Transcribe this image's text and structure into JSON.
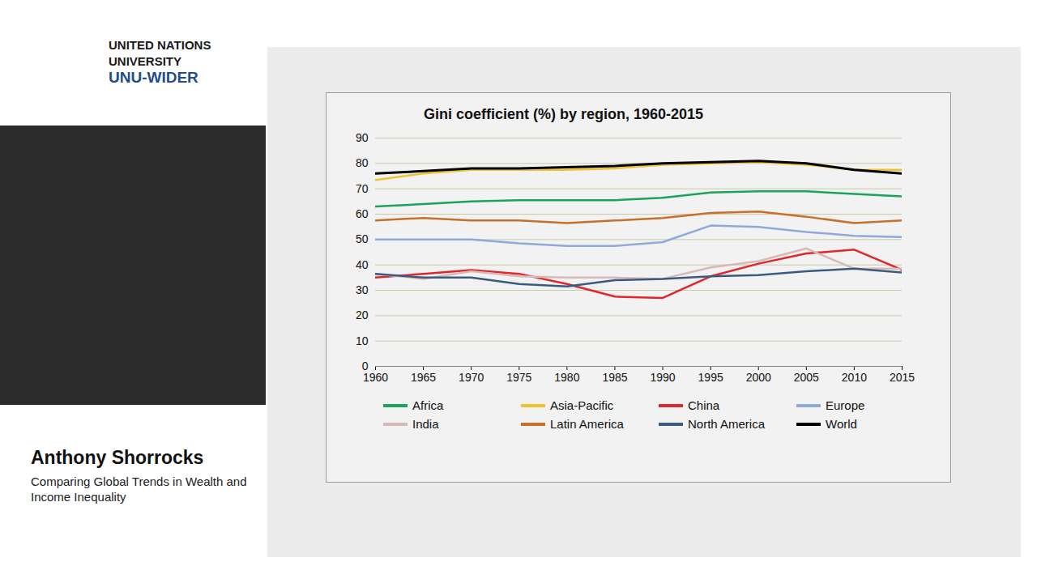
{
  "page": {
    "logo": [
      "UNITED NATIONS",
      "UNIVERSITY",
      "UNU-WIDER"
    ],
    "speaker": "Anthony Shorrocks",
    "talk": "Comparing Global Trends in Wealth and Income Inequality"
  },
  "chart_data": {
    "type": "line",
    "title": "Gini coefficient (%) by region, 1960-2015",
    "x": [
      1960,
      1965,
      1970,
      1975,
      1980,
      1985,
      1990,
      1995,
      2000,
      2005,
      2010,
      2015
    ],
    "xlim": [
      1960,
      2015
    ],
    "xticks": [
      1960,
      1965,
      1970,
      1975,
      1980,
      1985,
      1990,
      1995,
      2000,
      2005,
      2010,
      2015
    ],
    "ylim": [
      0,
      90
    ],
    "yticks": [
      0,
      10,
      20,
      30,
      40,
      50,
      60,
      70,
      80,
      90
    ],
    "grid": true,
    "legend": "bottom",
    "series": [
      {
        "name": "Africa",
        "color": "#1aa35a",
        "values": [
          63,
          64,
          65,
          65.5,
          65.5,
          65.5,
          66.5,
          68.5,
          69,
          69,
          68,
          67
        ]
      },
      {
        "name": "Asia-Pacific",
        "color": "#f2c12e",
        "values": [
          73.5,
          76,
          77.5,
          77.5,
          77.5,
          78,
          79.5,
          80,
          80.5,
          79.5,
          77.5,
          77.5
        ]
      },
      {
        "name": "China",
        "color": "#e0262a",
        "values": [
          35,
          36.5,
          38,
          36.5,
          32.5,
          27.5,
          27,
          35.5,
          40.5,
          44.5,
          46,
          38
        ]
      },
      {
        "name": "Europe",
        "color": "#8eaadb",
        "values": [
          50,
          50,
          50,
          48.5,
          47.5,
          47.5,
          49,
          55.5,
          55,
          53,
          51.5,
          51
        ]
      },
      {
        "name": "India",
        "color": "#d9b8b8",
        "values": [
          36.5,
          34.5,
          37.5,
          35.5,
          35,
          35,
          34.5,
          39,
          41.5,
          46.5,
          38.5,
          38.5
        ]
      },
      {
        "name": "Latin America",
        "color": "#c8702a",
        "values": [
          57.5,
          58.5,
          57.5,
          57.5,
          56.5,
          57.5,
          58.5,
          60.5,
          61,
          59,
          56.5,
          57.5
        ]
      },
      {
        "name": "North America",
        "color": "#3a5a80",
        "values": [
          36.5,
          35,
          35,
          32.5,
          31.5,
          34,
          34.5,
          35.5,
          36,
          37.5,
          38.5,
          37
        ]
      },
      {
        "name": "World",
        "color": "#000000",
        "values": [
          76,
          77,
          78,
          78,
          78.5,
          79,
          80,
          80.5,
          81,
          80,
          77.5,
          76
        ]
      }
    ]
  }
}
